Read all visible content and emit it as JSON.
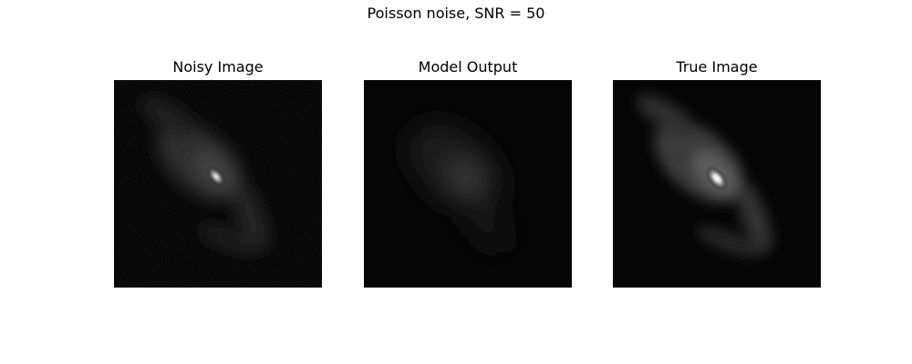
{
  "figure": {
    "title": "Poisson noise, SNR = 50"
  },
  "panels": [
    {
      "title": "Noisy Image",
      "kind": "noisy"
    },
    {
      "title": "Model Output",
      "kind": "blurred"
    },
    {
      "title": "True Image",
      "kind": "true"
    }
  ]
}
